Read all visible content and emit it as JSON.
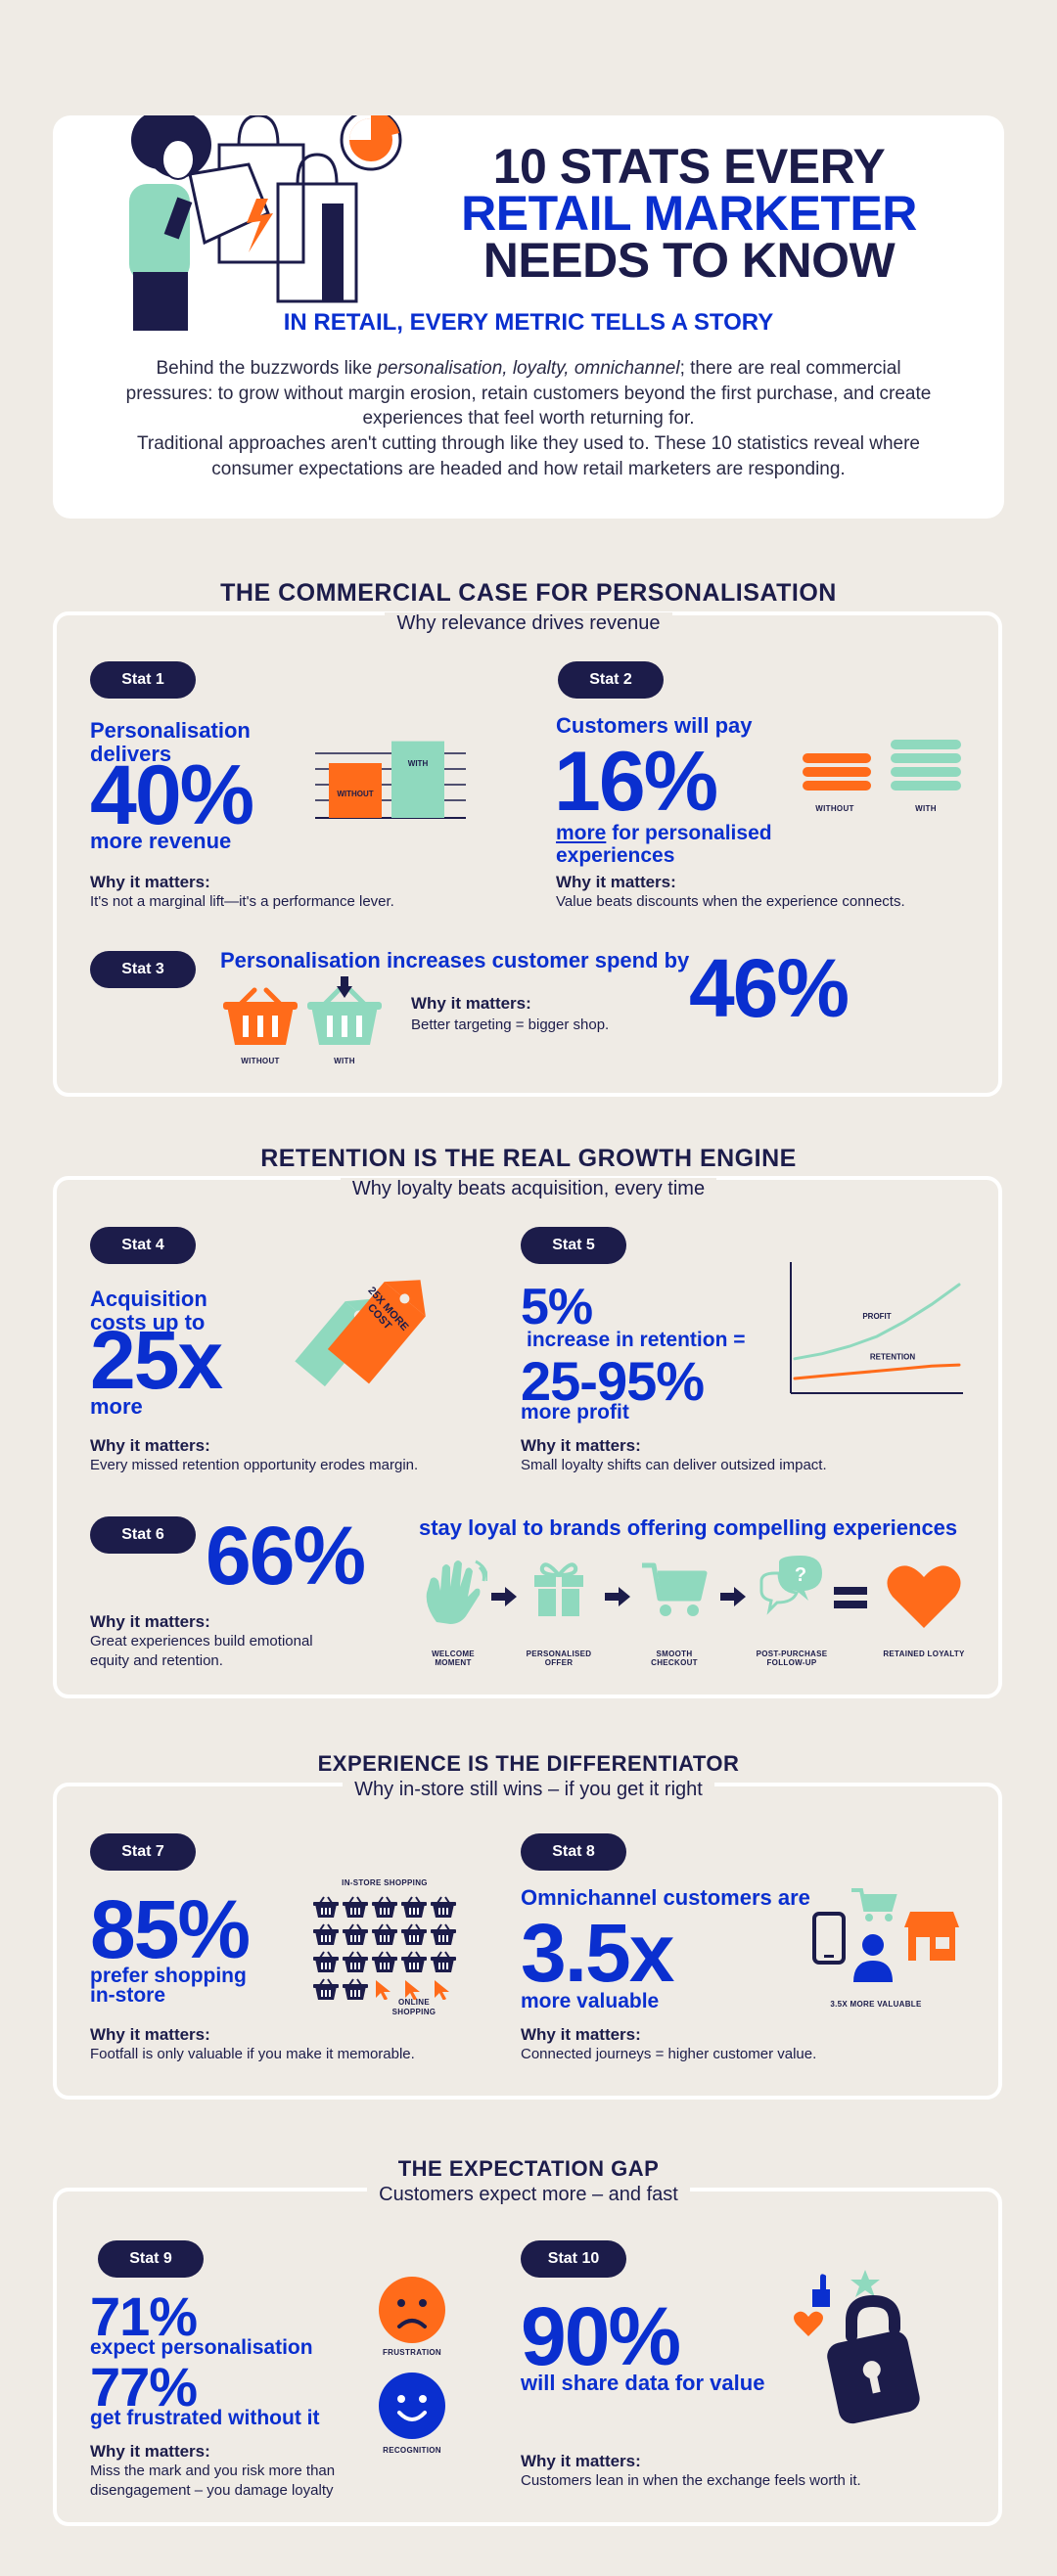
{
  "header": {
    "title_line1": "10 STATS EVERY",
    "title_line2": "RETAIL MARKETER",
    "title_line3": "NEEDS TO KNOW",
    "subtitle": "IN RETAIL, EVERY METRIC TELLS A STORY",
    "intro_p1_a": "Behind the buzzwords like ",
    "intro_p1_em": "personalisation, loyalty, omnichannel",
    "intro_p1_b": "; there are real commercial pressures: to grow without margin erosion, retain customers beyond the first purchase, and create experiences that feel worth returning for.",
    "intro_p2": "Traditional approaches aren't cutting through like they used to. These 10 statistics reveal where consumer expectations are headed and how retail marketers are responding."
  },
  "sections": [
    {
      "title": "THE COMMERCIAL CASE FOR PERSONALISATION",
      "subtitle": "Why relevance drives revenue"
    },
    {
      "title": "RETENTION IS THE REAL GROWTH ENGINE",
      "subtitle": "Why loyalty beats acquisition, every time"
    },
    {
      "title": "EXPERIENCE IS THE DIFFERENTIATOR",
      "subtitle": "Why in-store still wins – if you get it right"
    },
    {
      "title": "THE EXPECTATION GAP",
      "subtitle": "Customers expect more – and fast"
    }
  ],
  "why_heading": "Why it matters:",
  "stats": {
    "s1": {
      "badge": "Stat 1",
      "pre1": "Personalisation",
      "pre2": "delivers",
      "value": "40%",
      "post": "more revenue",
      "why": "It's not a marginal lift—it's a performance lever."
    },
    "s2": {
      "badge": "Stat 2",
      "pre": "Customers will pay",
      "value": "16%",
      "post_u": "more",
      "post_a": " for personalised",
      "post_b": "experiences",
      "why": "Value beats discounts when the experience connects.",
      "without": "WITHOUT",
      "with": "WITH"
    },
    "s3": {
      "badge": "Stat 3",
      "pre": "Personalisation increases customer spend by",
      "value": "46%",
      "why": "Better targeting = bigger shop.",
      "without": "WITHOUT",
      "with": "WITH"
    },
    "s4": {
      "badge": "Stat 4",
      "pre1": "Acquisition",
      "pre2": "costs up to",
      "value": "25x",
      "post": "more",
      "tag": "25X MORE COST",
      "why": "Every missed retention opportunity erodes margin."
    },
    "s5": {
      "badge": "Stat 5",
      "value1": "5%",
      "mid": "increase in retention =",
      "value2": "25-95%",
      "post": "more profit",
      "why": "Small loyalty shifts can deliver outsized impact."
    },
    "s6": {
      "badge": "Stat 6",
      "value": "66%",
      "post": "stay loyal to brands offering compelling experiences",
      "why1": "Great experiences build emotional",
      "why2": "equity and retention."
    },
    "s7": {
      "badge": "Stat 7",
      "value": "85%",
      "post1": "prefer shopping",
      "post2": "in-store",
      "why": "Footfall is only valuable if you make it memorable."
    },
    "s8": {
      "badge": "Stat 8",
      "pre": "Omnichannel customers are",
      "value": "3.5x",
      "post": "more valuable",
      "caption": "3.5X MORE VALUABLE",
      "why": "Connected journeys = higher customer value."
    },
    "s9": {
      "badge": "Stat 9",
      "value1": "71%",
      "post1": "expect personalisation",
      "value2": "77%",
      "post2": "get frustrated without it",
      "icon1": "FRUSTRATION",
      "icon2": "RECOGNITION",
      "why1": "Miss the mark and you risk more than",
      "why2": "disengagement – you damage loyalty"
    },
    "s10": {
      "badge": "Stat 10",
      "value": "90%",
      "post": "will share data for value",
      "why": "Customers lean in when the exchange feels worth it."
    }
  },
  "journey": [
    "WELCOME MOMENT",
    "PERSONALISED OFFER",
    "SMOOTH CHECKOUT",
    "POST-PURCHASE FOLLOW-UP",
    "RETAINED LOYALTY"
  ],
  "chart_data": [
    {
      "type": "bar",
      "categories": [
        "WITHOUT",
        "WITH"
      ],
      "values": [
        100,
        140
      ],
      "xlabel": "",
      "ylabel": ""
    },
    {
      "type": "line",
      "series": [
        {
          "name": "PROFIT",
          "values": [
            10,
            12,
            15,
            19,
            25,
            32,
            40
          ]
        },
        {
          "name": "RETENTION",
          "values": [
            2,
            3,
            4,
            5,
            6,
            7,
            7.5
          ]
        }
      ],
      "xlabel": "",
      "ylabel": ""
    },
    {
      "type": "pictogram",
      "categories": [
        "IN-STORE SHOPPING",
        "ONLINE SHOPPING"
      ],
      "values": [
        17,
        3
      ]
    }
  ],
  "colors": {
    "navy": "#1c1c4a",
    "blue": "#0a2fcf",
    "orange": "#ff6b1a",
    "mint": "#8fd9be"
  }
}
